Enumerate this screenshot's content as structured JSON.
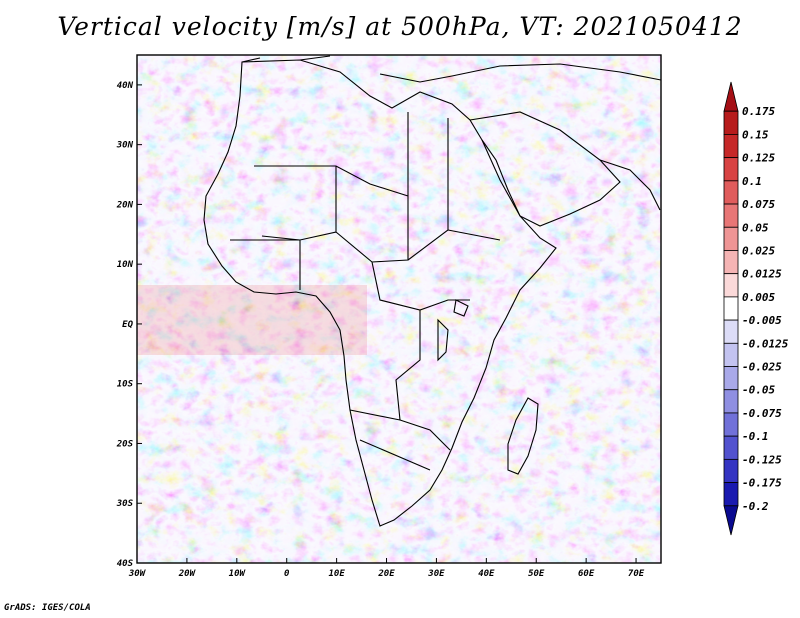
{
  "title": "Vertical velocity [m/s] at 500hPa, VT: 2021050412",
  "footer": "GrADS: IGES/COLA",
  "map": {
    "lon_range": [
      -30,
      75
    ],
    "lat_range": [
      -40,
      45
    ],
    "lon_ticks": [
      "30W",
      "20W",
      "10W",
      "0",
      "10E",
      "20E",
      "30E",
      "40E",
      "50E",
      "60E",
      "70E"
    ],
    "lat_ticks": [
      "40N",
      "30N",
      "20N",
      "10N",
      "EQ",
      "10S",
      "20S",
      "30S",
      "40S"
    ],
    "field": "vertical velocity",
    "units": "m/s",
    "level": "500hPa"
  },
  "colorbar": {
    "labels": [
      "0.175",
      "0.15",
      "0.125",
      "0.1",
      "0.075",
      "0.05",
      "0.025",
      "0.0125",
      "0.005",
      "-0.005",
      "-0.0125",
      "-0.025",
      "-0.05",
      "-0.075",
      "-0.1",
      "-0.125",
      "-0.175",
      "-0.2"
    ],
    "colors": [
      "#a50f15",
      "#b71c1c",
      "#c62828",
      "#d84343",
      "#e05c5c",
      "#e87676",
      "#ef9595",
      "#f5b4b4",
      "#fbd9d9",
      "#ffffff",
      "#dcdcf7",
      "#c3c3f0",
      "#a9a9e9",
      "#8f8fe2",
      "#7171d9",
      "#5252cf",
      "#3434c2",
      "#1a1ab0",
      "#0a0a90"
    ]
  }
}
